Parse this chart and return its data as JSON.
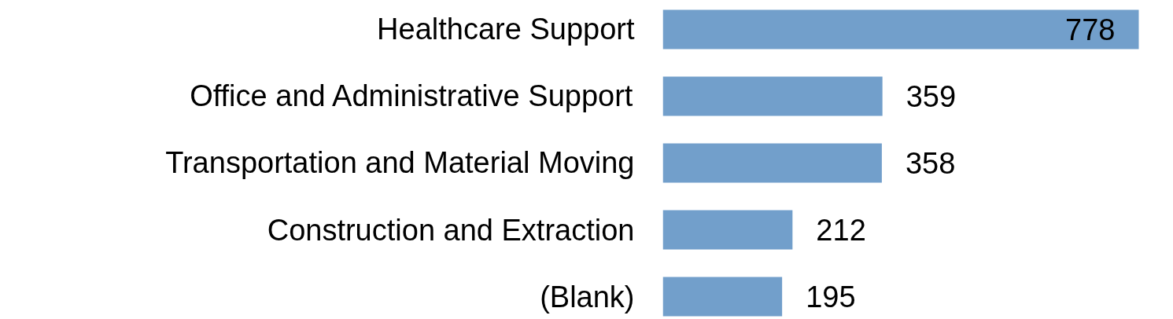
{
  "chart_data": {
    "type": "bar",
    "orientation": "horizontal",
    "categories": [
      "Healthcare Support",
      "Office and Administrative Support",
      "Transportation and Material Moving",
      "Construction and Extraction",
      "(Blank)"
    ],
    "values": [
      778,
      359,
      358,
      212,
      195
    ],
    "color": "#729fcb",
    "data_labels": true,
    "grid": false,
    "tick_labels": "y"
  }
}
